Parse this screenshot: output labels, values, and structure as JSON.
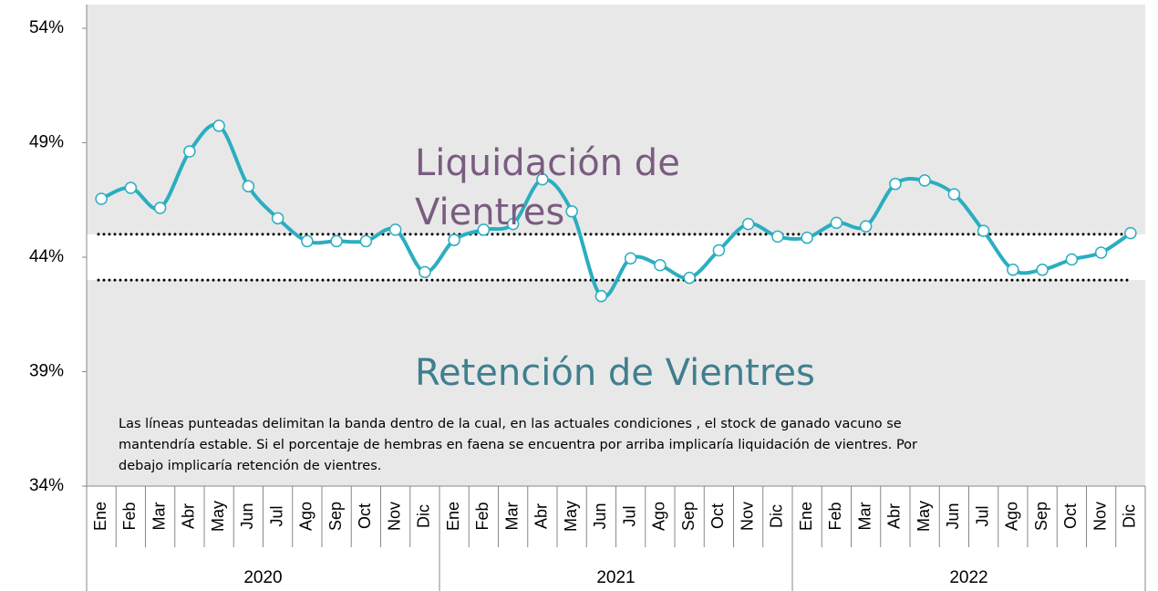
{
  "chart_data": {
    "type": "line",
    "categories": [
      "Ene",
      "Feb",
      "Mar",
      "Abr",
      "May",
      "Jun",
      "Jul",
      "Ago",
      "Sep",
      "Oct",
      "Nov",
      "Dic",
      "Ene",
      "Feb",
      "Mar",
      "Abr",
      "May",
      "Jun",
      "Jul",
      "Ago",
      "Sep",
      "Oct",
      "Nov",
      "Dic",
      "Ene",
      "Feb",
      "Mar",
      "Abr",
      "May",
      "Jun",
      "Jul",
      "Ago",
      "Sep",
      "Oct",
      "Nov",
      "Dic"
    ],
    "x_groups": [
      "2020",
      "2021",
      "2022"
    ],
    "series": [
      {
        "color": "#2aaec0",
        "values": [
          46.55,
          47.03,
          46.15,
          48.62,
          49.74,
          47.1,
          45.7,
          44.7,
          44.7,
          44.7,
          45.2,
          43.35,
          44.75,
          45.2,
          45.45,
          47.4,
          46.0,
          42.3,
          43.95,
          43.65,
          43.1,
          44.3,
          45.45,
          44.9,
          44.85,
          45.5,
          45.35,
          47.2,
          47.35,
          46.75,
          45.15,
          43.45,
          43.45,
          43.9,
          44.2,
          45.05
        ]
      }
    ],
    "band": [
      43,
      45
    ],
    "ylim": [
      34,
      54
    ],
    "yticks": [
      {
        "value": 34,
        "label": "34%"
      },
      {
        "value": 39,
        "label": "39%"
      },
      {
        "value": 44,
        "label": "44%"
      },
      {
        "value": 49,
        "label": "49%"
      },
      {
        "value": 54,
        "label": "54%"
      }
    ],
    "annotations": [
      "Liquidación de Vientres",
      "Retención de Vientres",
      "Las líneas punteadas delimitan la banda dentro de la cual, en las actuales condiciones , el stock de ganado vacuno se mantendría estable. Si el porcentaje de hembras en faena se encuentra por arriba implicaría liquidación de vientres. Por debajo implicaría retención de vientres."
    ]
  }
}
